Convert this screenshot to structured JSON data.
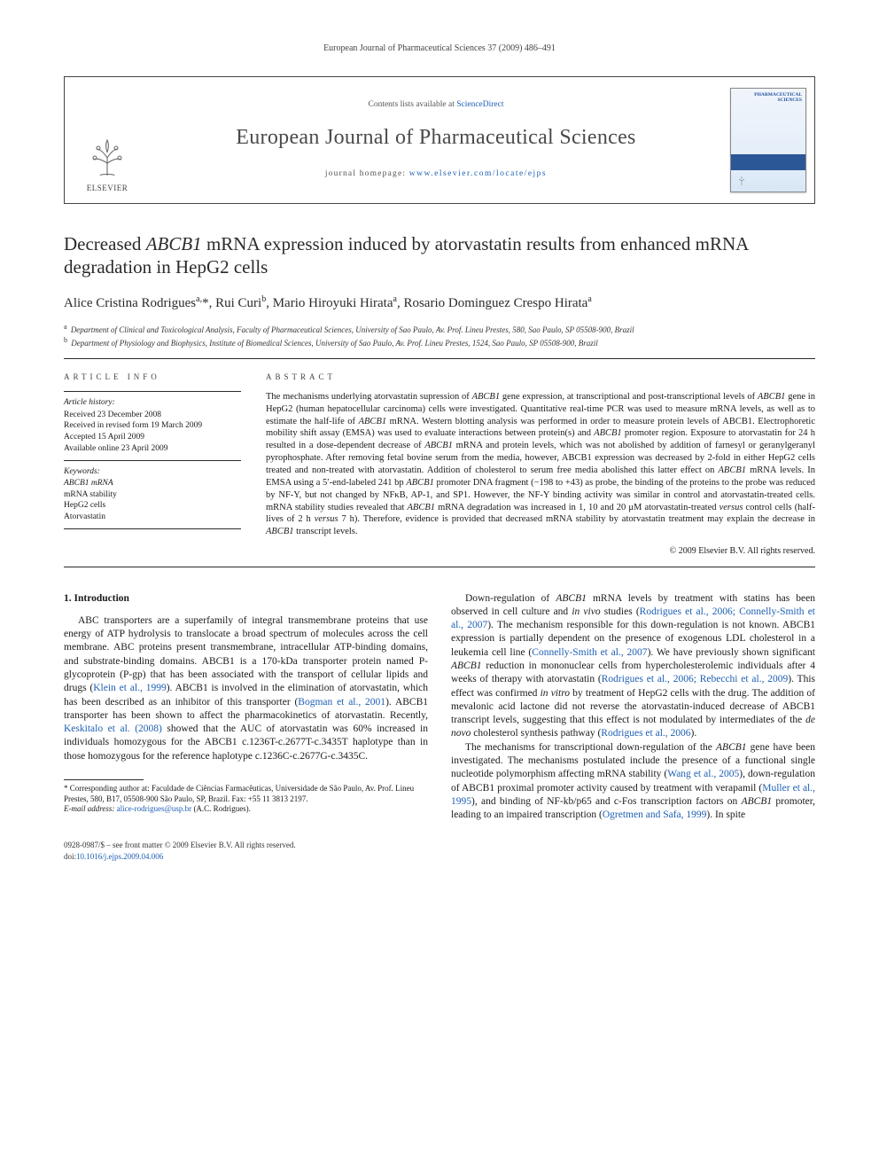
{
  "running_header": "European Journal of Pharmaceutical Sciences 37 (2009) 486–491",
  "masthead": {
    "contents_prefix": "Contents lists available at ",
    "contents_link": "ScienceDirect",
    "journal_name": "European Journal of Pharmaceutical Sciences",
    "homepage_prefix": "journal homepage: ",
    "homepage_link": "www.elsevier.com/locate/ejps",
    "publisher_name": "ELSEVIER",
    "cover_label_line1": "PHARMACEUTICAL",
    "cover_label_line2": "SCIENCES"
  },
  "article": {
    "title_html": "Decreased <i>ABCB1</i> mRNA expression induced by atorvastatin results from enhanced mRNA degradation in HepG2 cells",
    "authors_html": "Alice Cristina Rodrigues<sup>a,</sup>*, Rui Curi<sup>b</sup>, Mario Hiroyuki Hirata<sup>a</sup>, Rosario Dominguez Crespo Hirata<sup>a</sup>",
    "affiliations": [
      {
        "marker": "a",
        "text": "Department of Clinical and Toxicological Analysis, Faculty of Pharmaceutical Sciences, University of Sao Paulo, Av. Prof. Lineu Prestes, 580, Sao Paulo, SP 05508-900, Brazil"
      },
      {
        "marker": "b",
        "text": "Department of Physiology and Biophysics, Institute of Biomedical Sciences, University of Sao Paulo, Av. Prof. Lineu Prestes, 1524, Sao Paulo, SP 05508-900, Brazil"
      }
    ]
  },
  "info": {
    "label": "article info",
    "history_head": "Article history:",
    "history": [
      "Received 23 December 2008",
      "Received in revised form 19 March 2009",
      "Accepted 15 April 2009",
      "Available online 23 April 2009"
    ],
    "keywords_head": "Keywords:",
    "keywords": [
      "ABCB1 mRNA",
      "mRNA stability",
      "HepG2 cells",
      "Atorvastatin"
    ]
  },
  "abstract": {
    "label": "abstract",
    "text_html": "The mechanisms underlying atorvastatin supression of <i>ABCB1</i> gene expression, at transcriptional and post-transcriptional levels of <i>ABCB1</i> gene in HepG2 (human hepatocellular carcinoma) cells were investigated. Quantitative real-time PCR was used to measure mRNA levels, as well as to estimate the half-life of <i>ABCB1</i> mRNA. Western blotting analysis was performed in order to measure protein levels of ABCB1. Electrophoretic mobility shift assay (EMSA) was used to evaluate interactions between protein(s) and <i>ABCB1</i> promoter region. Exposure to atorvastatin for 24 h resulted in a dose-dependent decrease of <i>ABCB1</i> mRNA and protein levels, which was not abolished by addition of farnesyl or geranylgeranyl pyrophosphate. After removing fetal bovine serum from the media, however, ABCB1 expression was decreased by 2-fold in either HepG2 cells treated and non-treated with atorvastatin. Addition of cholesterol to serum free media abolished this latter effect on <i>ABCB1</i> mRNA levels. In EMSA using a 5′-end-labeled 241 bp <i>ABCB1</i> promoter DNA fragment (−198 to +43) as probe, the binding of the proteins to the probe was reduced by NF-Y, but not changed by NFκB, AP-1, and SP1. However, the NF-Y binding activity was similar in control and atorvastatin-treated cells. mRNA stability studies revealed that <i>ABCB1</i> mRNA degradation was increased in 1, 10 and 20 μM atorvastatin-treated <i>versus</i> control cells (half-lives of 2 h <i>versus</i> 7 h). Therefore, evidence is provided that decreased mRNA stability by atorvastatin treatment may explain the decrease in <i>ABCB1</i> transcript levels.",
    "copyright": "© 2009 Elsevier B.V. All rights reserved."
  },
  "body": {
    "intro_head": "1. Introduction",
    "p1_html": "ABC transporters are a superfamily of integral transmembrane proteins that use energy of ATP hydrolysis to translocate a broad spectrum of molecules across the cell membrane. ABC proteins present transmembrane, intracellular ATP-binding domains, and substrate-binding domains. ABCB1 is a 170-kDa transporter protein named P-glycoprotein (P-gp) that has been associated with the transport of cellular lipids and drugs (<a class=\"ref\" href=\"#\">Klein et al., 1999</a>). ABCB1 is involved in the elimination of atorvastatin, which has been described as an inhibitor of this transporter (<a class=\"ref\" href=\"#\">Bogman et al., 2001</a>). ABCB1 transporter has been shown to affect the pharmacokinetics of atorvastatin. Recently, <a class=\"ref\" href=\"#\">Keskitalo et al. (2008)</a> showed that the AUC of atorvastatin was 60% increased in individuals homozygous for the ABCB1 c.1236T-c.2677T-c.3435T haplotype than in those homozygous for the reference haplotype c.1236C-c.2677G-c.3435C.",
    "p2_html": "Down-regulation of <i>ABCB1</i> mRNA levels by treatment with statins has been observed in cell culture and <i>in vivo</i> studies (<a class=\"ref\" href=\"#\">Rodrigues et al., 2006; Connelly-Smith et al., 2007</a>). The mechanism responsible for this down-regulation is not known. ABCB1 expression is partially dependent on the presence of exogenous LDL cholesterol in a leukemia cell line (<a class=\"ref\" href=\"#\">Connelly-Smith et al., 2007</a>). We have previously shown significant <i>ABCB1</i> reduction in mononuclear cells from hypercholesterolemic individuals after 4 weeks of therapy with atorvastatin (<a class=\"ref\" href=\"#\">Rodrigues et al., 2006; Rebecchi et al., 2009</a>). This effect was confirmed <i>in vitro</i> by treatment of HepG2 cells with the drug. The addition of mevalonic acid lactone did not reverse the atorvastatin-induced decrease of ABCB1 transcript levels, suggesting that this effect is not modulated by intermediates of the <i>de novo</i> cholesterol synthesis pathway (<a class=\"ref\" href=\"#\">Rodrigues et al., 2006</a>).",
    "p3_html": "The mechanisms for transcriptional down-regulation of the <i>ABCB1</i> gene have been investigated. The mechanisms postulated include the presence of a functional single nucleotide polymorphism affecting mRNA stability (<a class=\"ref\" href=\"#\">Wang et al., 2005</a>), down-regulation of ABCB1 proximal promoter activity caused by treatment with verapamil (<a class=\"ref\" href=\"#\">Muller et al., 1995</a>), and binding of NF-kb/p65 and c-Fos transcription factors on <i>ABCB1</i> promoter, leading to an impaired transcription (<a class=\"ref\" href=\"#\">Ogretmen and Safa, 1999</a>). In spite"
  },
  "footnote": {
    "corr_html": "* Corresponding author at: Faculdade de Ciências Farmacêuticas, Universidade de São Paulo, Av. Prof. Lineu Prestes, 580, B17, 05508-900 São Paulo, SP, Brazil. Fax: +55 11 3813 2197.",
    "email_label": "E-mail address:",
    "email": "alice-rodrigues@usp.br",
    "email_suffix": "(A.C. Rodrigues)."
  },
  "footer": {
    "left_line1": "0928-0987/$ – see front matter © 2009 Elsevier B.V. All rights reserved.",
    "left_line2_prefix": "doi:",
    "doi": "10.1016/j.ejps.2009.04.006"
  },
  "colors": {
    "link": "#1e5fb3",
    "text": "#1a1a1a",
    "rule": "#2b2b2b",
    "cover_brand": "#2b5797"
  }
}
